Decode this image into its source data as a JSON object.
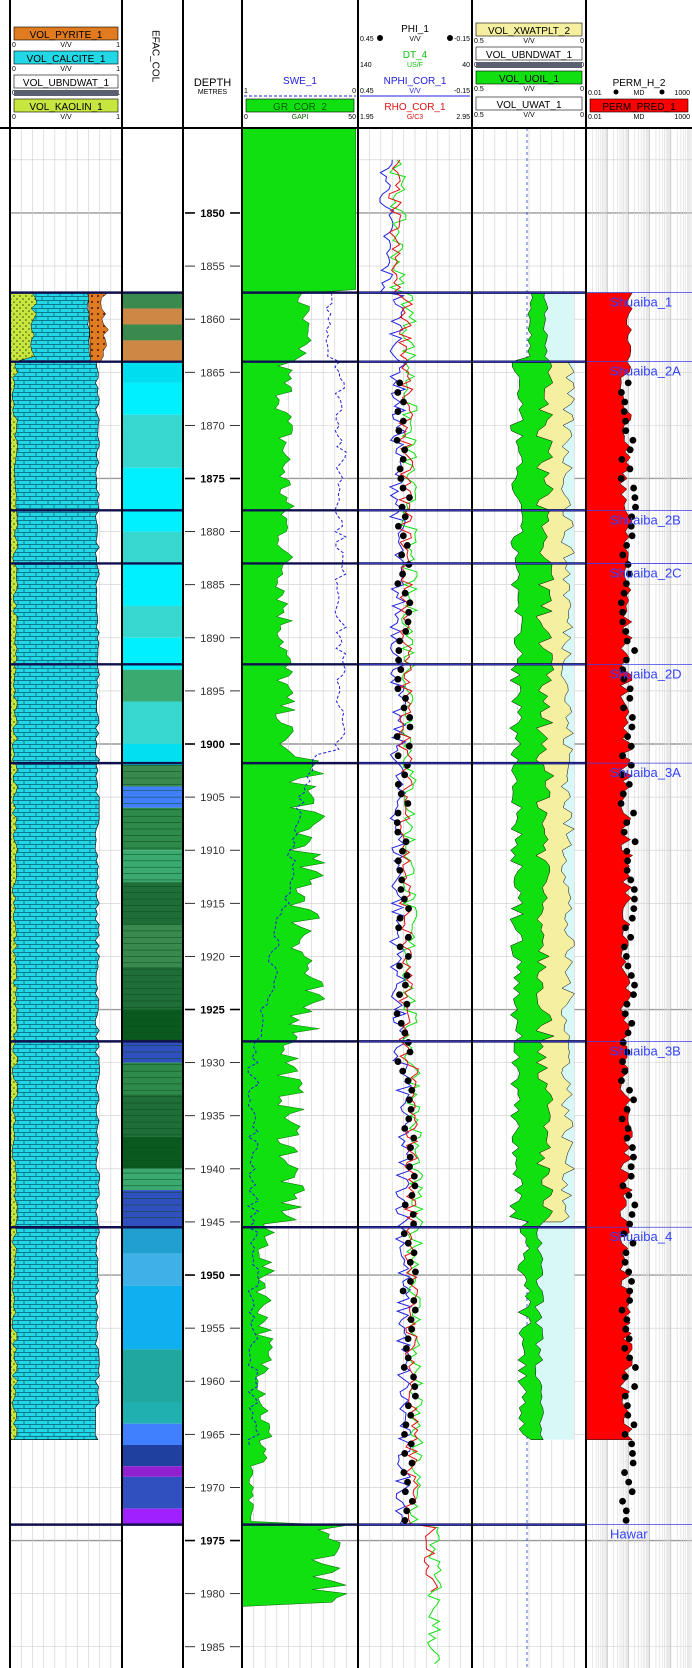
{
  "chart_data": {
    "type": "well-log",
    "depth_track": {
      "title": "DEPTH",
      "unit": "METRES",
      "ylim": [
        1842,
        1987
      ],
      "ticks": [
        1850,
        1855,
        1860,
        1865,
        1870,
        1875,
        1880,
        1885,
        1890,
        1895,
        1900,
        1905,
        1910,
        1915,
        1920,
        1925,
        1930,
        1935,
        1940,
        1945,
        1950,
        1955,
        1960,
        1965,
        1970,
        1975,
        1980,
        1985
      ],
      "major_ticks": [
        1850,
        1875,
        1900,
        1925,
        1950,
        1975
      ]
    },
    "tracks": [
      {
        "id": "lithology",
        "headers": [
          {
            "name": "VOL_PYRITE_1",
            "unit": "V/V",
            "min": "0",
            "max": "1",
            "color": "#e07b20"
          },
          {
            "name": "VOL_CALCITE_1",
            "unit": "V/V",
            "min": "0",
            "max": "1",
            "color": "#22d8e6"
          },
          {
            "name": "VOL_UBNDWAT_1",
            "unit": "V/V",
            "min": "0",
            "max": "1",
            "color": "#5a6070"
          },
          {
            "name": "VOL_KAOLIN_1",
            "unit": "V/V",
            "min": "0",
            "max": "1",
            "color": "#c8e640"
          }
        ]
      },
      {
        "id": "efac",
        "headers": [
          {
            "name": "EFAC_COL",
            "unit": "",
            "min": "",
            "max": "",
            "color": "#000000"
          }
        ]
      },
      {
        "id": "gr_swe",
        "headers": [
          {
            "name": "SWE_1",
            "unit": "",
            "min": "1",
            "max": "0",
            "color": "#2020e0"
          },
          {
            "name": "GR_COR_2",
            "unit": "GAPI",
            "min": "0",
            "max": "50",
            "color": "#10e010"
          }
        ]
      },
      {
        "id": "porosity",
        "headers": [
          {
            "name": "PHI_1",
            "unit": "V/V",
            "min": "0.45",
            "max": "-0.15",
            "color": "#000000"
          },
          {
            "name": "DT_4",
            "unit": "US/F",
            "min": "140",
            "max": "40",
            "color": "#10e010"
          },
          {
            "name": "NPHI_COR_1",
            "unit": "V/V",
            "min": "0.45",
            "max": "-0.15",
            "color": "#2020e0"
          },
          {
            "name": "RHO_COR_1",
            "unit": "G/C3",
            "min": "1.95",
            "max": "2.95",
            "color": "#e01010"
          }
        ]
      },
      {
        "id": "fluids",
        "headers": [
          {
            "name": "VOL_XWATPLT_2",
            "unit": "V/V",
            "min": "0.5",
            "max": "0",
            "color": "#f5f0a0"
          },
          {
            "name": "VOL_UBNDWAT_1",
            "unit": "V/V",
            "min": "0.5",
            "max": "0",
            "color": "#5a6070"
          },
          {
            "name": "VOL_UOIL_1",
            "unit": "V/V",
            "min": "0.5",
            "max": "0",
            "color": "#10e010"
          },
          {
            "name": "VOL_UWAT_1",
            "unit": "V/V",
            "min": "0.5",
            "max": "0",
            "color": "#d8f8f8"
          }
        ]
      },
      {
        "id": "perm",
        "headers": [
          {
            "name": "PERM_H_2",
            "unit": "MD",
            "min": "0.01",
            "max": "1000",
            "color": "#000000"
          },
          {
            "name": "PERM_PRED_1",
            "unit": "MD",
            "min": "0.01",
            "max": "1000",
            "color": "#e01010"
          }
        ]
      }
    ],
    "zones": [
      {
        "label": "Shuaiba_1",
        "top": 1857.5
      },
      {
        "label": "Shuaiba_2A",
        "top": 1864.0
      },
      {
        "label": "Shuaiba_2B",
        "top": 1878.0
      },
      {
        "label": "Shuaiba_2C",
        "top": 1883.0
      },
      {
        "label": "Shuaiba_2D",
        "top": 1892.5
      },
      {
        "label": "Shuaiba_3A",
        "top": 1901.8
      },
      {
        "label": "Shuaiba_3B",
        "top": 1928.0
      },
      {
        "label": "Shuaiba_4",
        "top": 1945.5
      },
      {
        "label": "Hawar",
        "top": 1973.5
      }
    ],
    "interval": {
      "top": 1857.5,
      "bottom": 1973.5,
      "fill_bottom": 1965.5
    },
    "efac_bands": [
      {
        "from": 1857.5,
        "to": 1859.0,
        "color": "#3a8a50"
      },
      {
        "from": 1859.0,
        "to": 1860.5,
        "color": "#cc8844"
      },
      {
        "from": 1860.5,
        "to": 1862.0,
        "color": "#3a8a50"
      },
      {
        "from": 1862.0,
        "to": 1864.0,
        "color": "#cc8844"
      },
      {
        "from": 1864.0,
        "to": 1866.0,
        "color": "#00ddee"
      },
      {
        "from": 1866.0,
        "to": 1869.0,
        "color": "#00f0ff"
      },
      {
        "from": 1869.0,
        "to": 1874.0,
        "color": "#38d8d0"
      },
      {
        "from": 1874.0,
        "to": 1880.0,
        "color": "#00f0ff"
      },
      {
        "from": 1880.0,
        "to": 1883.0,
        "color": "#38d8d0"
      },
      {
        "from": 1883.0,
        "to": 1887.0,
        "color": "#00f0ff"
      },
      {
        "from": 1887.0,
        "to": 1890.0,
        "color": "#38d8d0"
      },
      {
        "from": 1890.0,
        "to": 1893.0,
        "color": "#00f0ff"
      },
      {
        "from": 1893.0,
        "to": 1896.0,
        "color": "#3aaa70"
      },
      {
        "from": 1896.0,
        "to": 1900.0,
        "color": "#38d8d0"
      },
      {
        "from": 1900.0,
        "to": 1902.0,
        "color": "#00e0f0"
      },
      {
        "from": 1902.0,
        "to": 1904.0,
        "color": "#3a8a50"
      },
      {
        "from": 1904.0,
        "to": 1906.0,
        "color": "#4080ff"
      },
      {
        "from": 1906.0,
        "to": 1910.0,
        "color": "#2d8a4a"
      },
      {
        "from": 1910.0,
        "to": 1913.0,
        "color": "#3aaa70"
      },
      {
        "from": 1913.0,
        "to": 1917.0,
        "color": "#1f6e38"
      },
      {
        "from": 1917.0,
        "to": 1921.0,
        "color": "#3a8a50"
      },
      {
        "from": 1921.0,
        "to": 1925.0,
        "color": "#1f6e38"
      },
      {
        "from": 1925.0,
        "to": 1928.0,
        "color": "#0a5a20"
      },
      {
        "from": 1928.0,
        "to": 1930.0,
        "color": "#3050c0"
      },
      {
        "from": 1930.0,
        "to": 1933.0,
        "color": "#2d8a4a"
      },
      {
        "from": 1933.0,
        "to": 1937.0,
        "color": "#1f6e38"
      },
      {
        "from": 1937.0,
        "to": 1940.0,
        "color": "#0a5a20"
      },
      {
        "from": 1940.0,
        "to": 1942.0,
        "color": "#3aaa70"
      },
      {
        "from": 1942.0,
        "to": 1945.5,
        "color": "#3050c0"
      },
      {
        "from": 1945.5,
        "to": 1948.0,
        "color": "#20a0d0"
      },
      {
        "from": 1948.0,
        "to": 1951.0,
        "color": "#40b0e8"
      },
      {
        "from": 1951.0,
        "to": 1957.0,
        "color": "#10b0f0"
      },
      {
        "from": 1957.0,
        "to": 1962.0,
        "color": "#20a8a0"
      },
      {
        "from": 1962.0,
        "to": 1964.0,
        "color": "#20b0b0"
      },
      {
        "from": 1964.0,
        "to": 1966.0,
        "color": "#4080ff"
      },
      {
        "from": 1966.0,
        "to": 1968.0,
        "color": "#2040a0"
      },
      {
        "from": 1968.0,
        "to": 1969.0,
        "color": "#9020d0"
      },
      {
        "from": 1969.0,
        "to": 1972.0,
        "color": "#3050c0"
      },
      {
        "from": 1972.0,
        "to": 1973.5,
        "color": "#a020ff"
      }
    ]
  }
}
